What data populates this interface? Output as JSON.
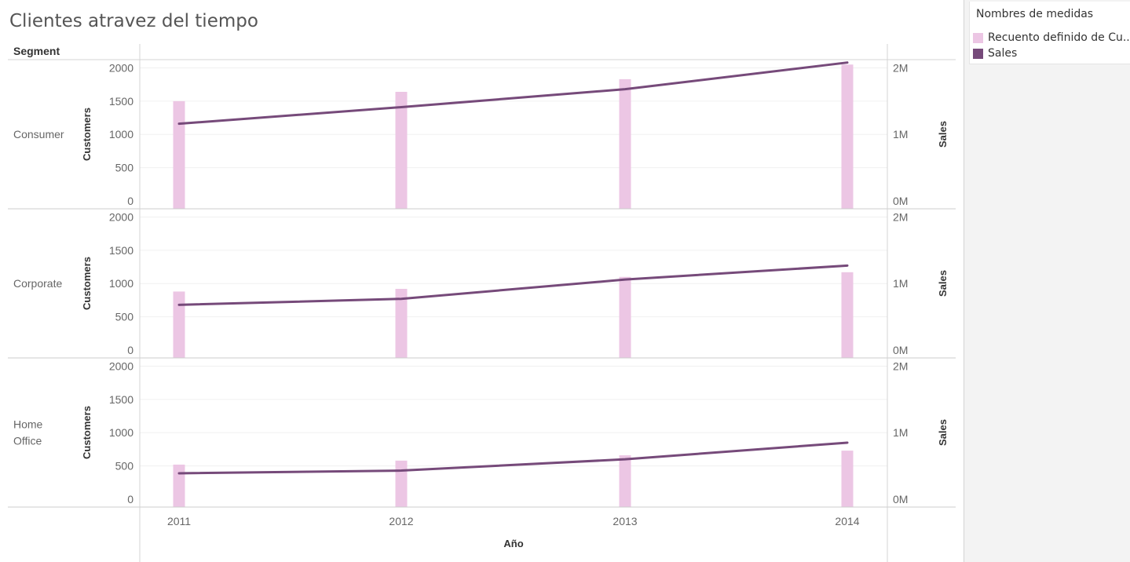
{
  "title": "Clientes atravez del tiempo",
  "legend": {
    "title": "Nombres de medidas",
    "items": [
      {
        "label": "Recuento definido de Cu..",
        "color": "#ecc6e4"
      },
      {
        "label": "Sales",
        "color": "#764a7a"
      }
    ]
  },
  "chart_data": {
    "type": "bar-line-dual-axis",
    "title": "Clientes atravez del tiempo",
    "row_header": "Segment",
    "xlabel": "Año",
    "categories": [
      "2011",
      "2012",
      "2013",
      "2014"
    ],
    "left_axis": {
      "label": "Customers",
      "ylim": [
        0,
        2100
      ],
      "ticks": [
        0,
        500,
        1000,
        1500,
        2000
      ],
      "tick_labels": [
        "0",
        "500",
        "1000",
        "1500",
        "2000"
      ]
    },
    "right_axis": {
      "label": "Sales",
      "ylim": [
        0,
        2100000
      ],
      "ticks": [
        0,
        1000000,
        2000000
      ],
      "tick_labels": [
        "0M",
        "1M",
        "2M"
      ]
    },
    "panels": [
      {
        "segment": "Consumer",
        "segment_lines": [
          "Consumer"
        ],
        "customers": [
          1500,
          1640,
          1830,
          2050
        ],
        "sales": [
          1160000,
          1410000,
          1680000,
          2080000
        ]
      },
      {
        "segment": "Corporate",
        "segment_lines": [
          "Corporate"
        ],
        "customers": [
          880,
          920,
          1100,
          1170
        ],
        "sales": [
          680000,
          770000,
          1060000,
          1270000
        ]
      },
      {
        "segment": "Home Office",
        "segment_lines": [
          "Home",
          "Office"
        ],
        "customers": [
          520,
          580,
          660,
          730
        ],
        "sales": [
          390000,
          430000,
          600000,
          850000
        ]
      }
    ],
    "series": [
      {
        "name": "Recuento definido de Cu..",
        "mark": "bar",
        "axis": "left",
        "color": "#ecc6e4"
      },
      {
        "name": "Sales",
        "mark": "line",
        "axis": "right",
        "color": "#764a7a"
      }
    ]
  }
}
